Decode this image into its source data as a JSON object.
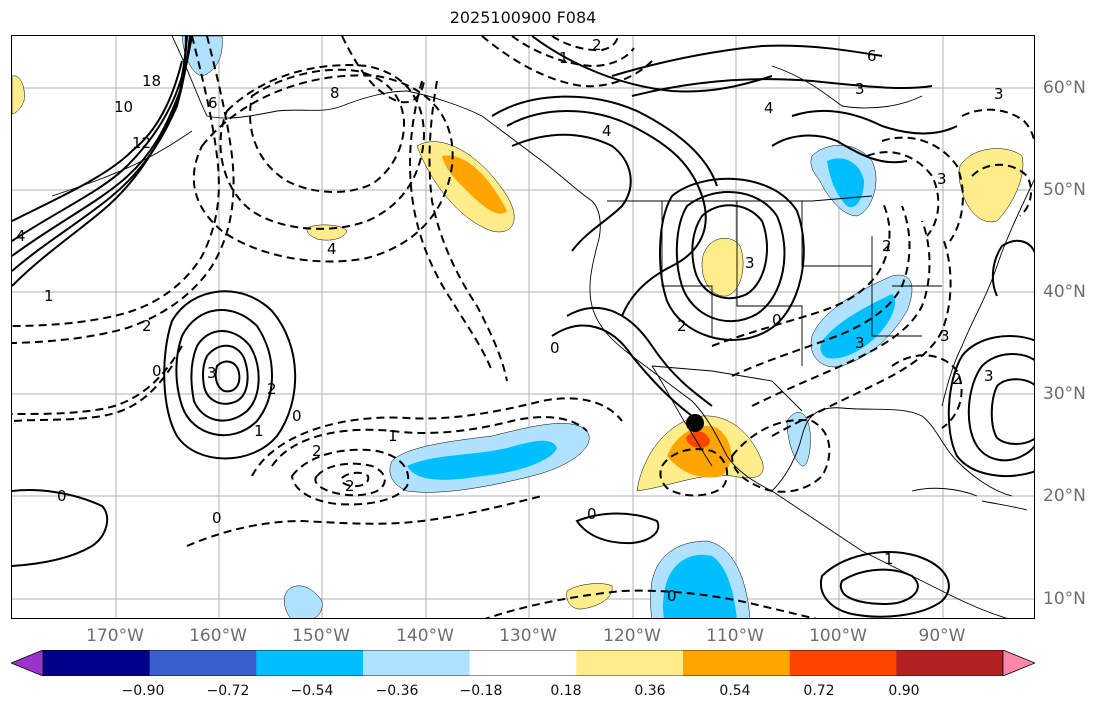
{
  "title": "2025100900 F084",
  "map": {
    "longitude_labels": [
      "170°W",
      "160°W",
      "150°W",
      "140°W",
      "130°W",
      "120°W",
      "110°W",
      "100°W",
      "90°W"
    ],
    "latitude_labels": [
      "60°N",
      "50°N",
      "40°N",
      "30°N",
      "20°N",
      "10°N"
    ],
    "grid_color": "#b0b0b0",
    "land_outline_color": "#000000",
    "contour_labels_solid": [
      "6",
      "3",
      "4",
      "4",
      "3",
      "3",
      "3",
      "3",
      "2",
      "1",
      "0",
      "1",
      "0",
      "10",
      "18",
      "12",
      "6",
      "4"
    ],
    "contour_labels_dashed": [
      "2",
      "1",
      "8",
      "4",
      "2",
      "0",
      "1",
      "2",
      "2",
      "1",
      "0",
      "2",
      "3",
      "3",
      "3",
      "2",
      "0",
      "2",
      "0"
    ],
    "marker": "storm-center-dot"
  },
  "colorbar": {
    "colors": [
      "#9a32cd",
      "#00008b",
      "#3a5fcd",
      "#00bfff",
      "#b0e2ff",
      "#ffffff",
      "#ffec8b",
      "#ffa500",
      "#ff4500",
      "#b22222",
      "#ff88aa"
    ],
    "tick_labels": [
      "−0.90",
      "−0.72",
      "−0.54",
      "−0.36",
      "−0.18",
      "0.18",
      "0.36",
      "0.54",
      "0.72",
      "0.90"
    ]
  }
}
